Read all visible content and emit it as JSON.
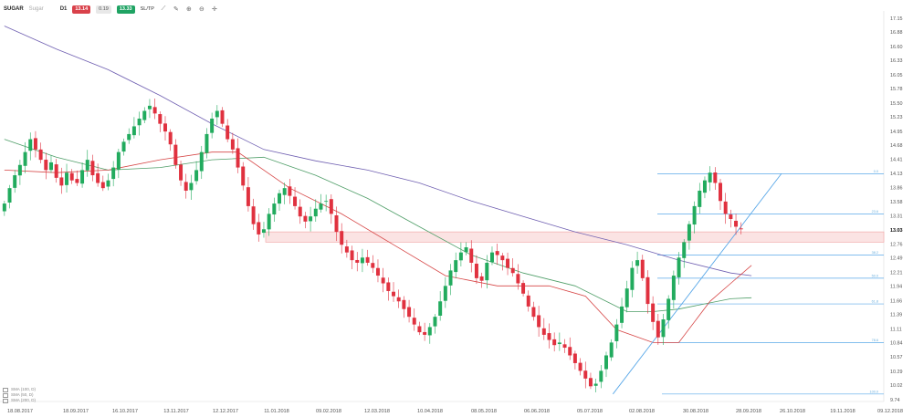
{
  "toolbar": {
    "symbol": "SUGAR",
    "symbol_note": "Sugar",
    "timeframe": "D1",
    "sell": "13.14",
    "spread": "0.19",
    "buy": "13.33",
    "sltp": "SL/TP",
    "icons": [
      "line-tool-icon",
      "draw-tool-icon",
      "zoom-in-icon",
      "zoom-out-icon",
      "crosshair-icon"
    ]
  },
  "legend": {
    "rows": [
      "SMA (100, D)",
      "SMA (50, D)",
      "SMA (200, D)"
    ]
  },
  "colors": {
    "up": "#22ab5e",
    "down": "#e0313f",
    "sma_red": "#d64545",
    "sma_green": "#4f9e68",
    "sma_purple": "#6f5fb1",
    "fib": "#5aa8e8",
    "zone": "#f0a0a0"
  },
  "chart_data": {
    "type": "candlestick",
    "ylim": [
      9.74,
      17.15
    ],
    "y_ticks": [
      "17.15",
      "16.88",
      "16.60",
      "16.33",
      "16.05",
      "15.78",
      "15.50",
      "15.23",
      "14.95",
      "14.68",
      "14.41",
      "14.13",
      "13.86",
      "13.58",
      "13.31",
      "13.03",
      "12.76",
      "12.49",
      "12.21",
      "11.94",
      "11.66",
      "11.39",
      "11.11",
      "10.84",
      "10.57",
      "10.29",
      "10.02",
      "9.74"
    ],
    "x_ticks": [
      "18.08.2017",
      "18.09.2017",
      "16.10.2017",
      "13.11.2017",
      "12.12.2017",
      "11.01.2018",
      "09.02.2018",
      "12.03.2018",
      "10.04.2018",
      "08.05.2018",
      "06.06.2018",
      "05.07.2018",
      "02.08.2018",
      "30.08.2018",
      "28.09.2018",
      "26.10.2018",
      "19.11.2018",
      "09.12.2018"
    ],
    "closes": [
      13.55,
      13.85,
      14.1,
      14.3,
      14.55,
      14.8,
      14.6,
      14.4,
      14.2,
      14.35,
      14.05,
      13.9,
      14.15,
      14.0,
      13.95,
      14.2,
      14.4,
      14.1,
      13.95,
      13.85,
      14.0,
      14.25,
      14.55,
      14.75,
      14.9,
      15.05,
      15.2,
      15.35,
      15.45,
      15.3,
      15.1,
      14.95,
      14.7,
      14.3,
      14.0,
      13.8,
      13.95,
      14.2,
      14.55,
      14.9,
      15.2,
      15.35,
      15.1,
      14.8,
      14.6,
      14.25,
      13.9,
      13.5,
      13.15,
      12.95,
      13.05,
      13.35,
      13.55,
      13.75,
      13.85,
      13.7,
      13.5,
      13.3,
      13.2,
      13.3,
      13.45,
      13.55,
      13.6,
      13.35,
      13.0,
      12.75,
      12.6,
      12.45,
      12.4,
      12.5,
      12.4,
      12.3,
      12.15,
      12.0,
      11.85,
      11.75,
      11.65,
      11.5,
      11.35,
      11.2,
      11.05,
      11.0,
      11.15,
      11.35,
      11.65,
      11.95,
      12.25,
      12.45,
      12.6,
      12.7,
      12.4,
      12.1,
      12.05,
      12.4,
      12.6,
      12.55,
      12.45,
      12.3,
      12.2,
      12.0,
      11.8,
      11.55,
      11.35,
      11.15,
      11.0,
      10.9,
      10.8,
      10.85,
      10.75,
      10.6,
      10.45,
      10.3,
      10.15,
      10.0,
      10.05,
      10.3,
      10.6,
      10.85,
      11.2,
      11.55,
      11.9,
      12.3,
      12.45,
      12.1,
      11.6,
      11.25,
      10.95,
      11.3,
      11.7,
      12.15,
      12.5,
      12.8,
      13.15,
      13.5,
      13.8,
      14.0,
      14.15,
      13.95,
      13.6,
      13.35,
      13.25,
      13.1,
      13.05
    ],
    "series": [
      {
        "name": "SMA (200, D)",
        "color_key": "sma_purple",
        "values": [
          [
            0,
            17.0
          ],
          [
            10,
            16.55
          ],
          [
            20,
            16.15
          ],
          [
            30,
            15.65
          ],
          [
            40,
            15.1
          ],
          [
            50,
            14.6
          ],
          [
            60,
            14.38
          ],
          [
            70,
            14.2
          ],
          [
            80,
            13.95
          ],
          [
            90,
            13.6
          ],
          [
            100,
            13.3
          ],
          [
            110,
            13.0
          ],
          [
            120,
            12.75
          ],
          [
            130,
            12.45
          ],
          [
            140,
            12.2
          ],
          [
            144,
            12.15
          ]
        ]
      },
      {
        "name": "SMA (50, D)",
        "color_key": "sma_green",
        "values": [
          [
            0,
            14.8
          ],
          [
            10,
            14.45
          ],
          [
            20,
            14.2
          ],
          [
            30,
            14.25
          ],
          [
            40,
            14.4
          ],
          [
            50,
            14.45
          ],
          [
            60,
            14.1
          ],
          [
            70,
            13.65
          ],
          [
            80,
            13.1
          ],
          [
            90,
            12.55
          ],
          [
            100,
            12.2
          ],
          [
            110,
            11.95
          ],
          [
            115,
            11.7
          ],
          [
            120,
            11.45
          ],
          [
            125,
            11.45
          ],
          [
            130,
            11.5
          ],
          [
            140,
            11.7
          ],
          [
            144,
            11.72
          ]
        ]
      },
      {
        "name": "SMA (100, D)",
        "color_key": "sma_red",
        "values": [
          [
            0,
            14.2
          ],
          [
            10,
            14.15
          ],
          [
            20,
            14.2
          ],
          [
            30,
            14.4
          ],
          [
            40,
            14.55
          ],
          [
            45,
            14.55
          ],
          [
            55,
            13.85
          ],
          [
            65,
            13.35
          ],
          [
            75,
            12.75
          ],
          [
            85,
            12.15
          ],
          [
            95,
            11.95
          ],
          [
            105,
            11.95
          ],
          [
            112,
            11.75
          ],
          [
            118,
            11.1
          ],
          [
            125,
            10.85
          ],
          [
            130,
            10.85
          ],
          [
            136,
            11.65
          ],
          [
            140,
            12.0
          ],
          [
            144,
            12.35
          ]
        ]
      }
    ],
    "fib_levels": [
      "0.0",
      "23.6",
      "38.2",
      "50.0",
      "61.8",
      "78.6",
      "100.0"
    ],
    "fib_values": [
      14.13,
      13.35,
      12.55,
      12.1,
      11.6,
      10.85,
      9.85
    ],
    "trendline": [
      [
        118,
        9.85
      ],
      [
        148,
        14.13
      ]
    ],
    "support_zone": [
      12.8,
      13.0
    ]
  }
}
